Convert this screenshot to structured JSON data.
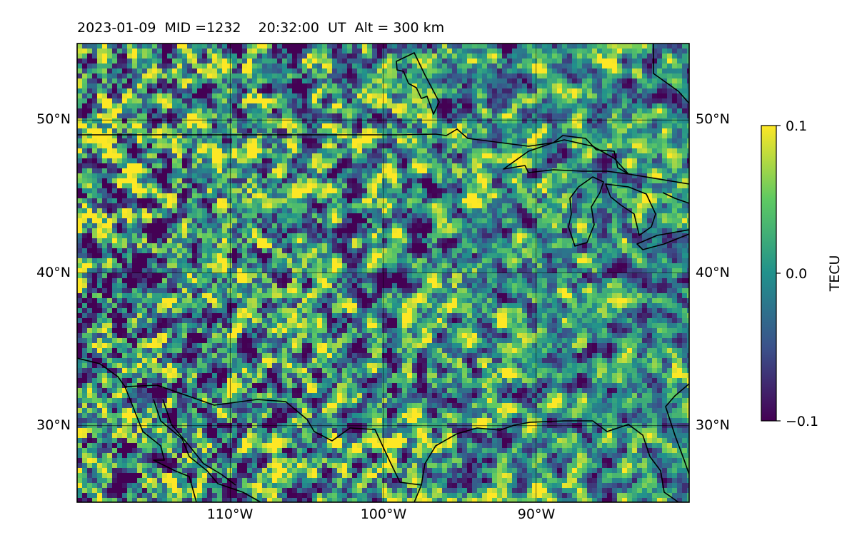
{
  "title": "2023-01-09  MID =1232    20:32:00  UT  Alt = 300 km",
  "map": {
    "lon_range": [
      -120,
      -80
    ],
    "lat_range": [
      25,
      55
    ],
    "lat_ticks": [
      {
        "value": 30,
        "label": "30°N"
      },
      {
        "value": 40,
        "label": "40°N"
      },
      {
        "value": 50,
        "label": "50°N"
      }
    ],
    "lon_ticks": [
      {
        "value": -110,
        "label": "110°W"
      },
      {
        "value": -100,
        "label": "100°W"
      },
      {
        "value": -90,
        "label": "90°W"
      }
    ],
    "gridlines": true,
    "colormap": "viridis",
    "colormap_stops": [
      "#440154",
      "#3b528b",
      "#21918c",
      "#5ec962",
      "#fde725"
    ],
    "background_mean_color": "#2a8a86"
  },
  "colorbar": {
    "label": "TECU",
    "vmin": -0.1,
    "vmax": 0.1,
    "ticks": [
      {
        "value": 0.1,
        "label": "0.1"
      },
      {
        "value": 0.0,
        "label": "0.0"
      },
      {
        "value": -0.1,
        "label": "−0.1"
      }
    ]
  }
}
